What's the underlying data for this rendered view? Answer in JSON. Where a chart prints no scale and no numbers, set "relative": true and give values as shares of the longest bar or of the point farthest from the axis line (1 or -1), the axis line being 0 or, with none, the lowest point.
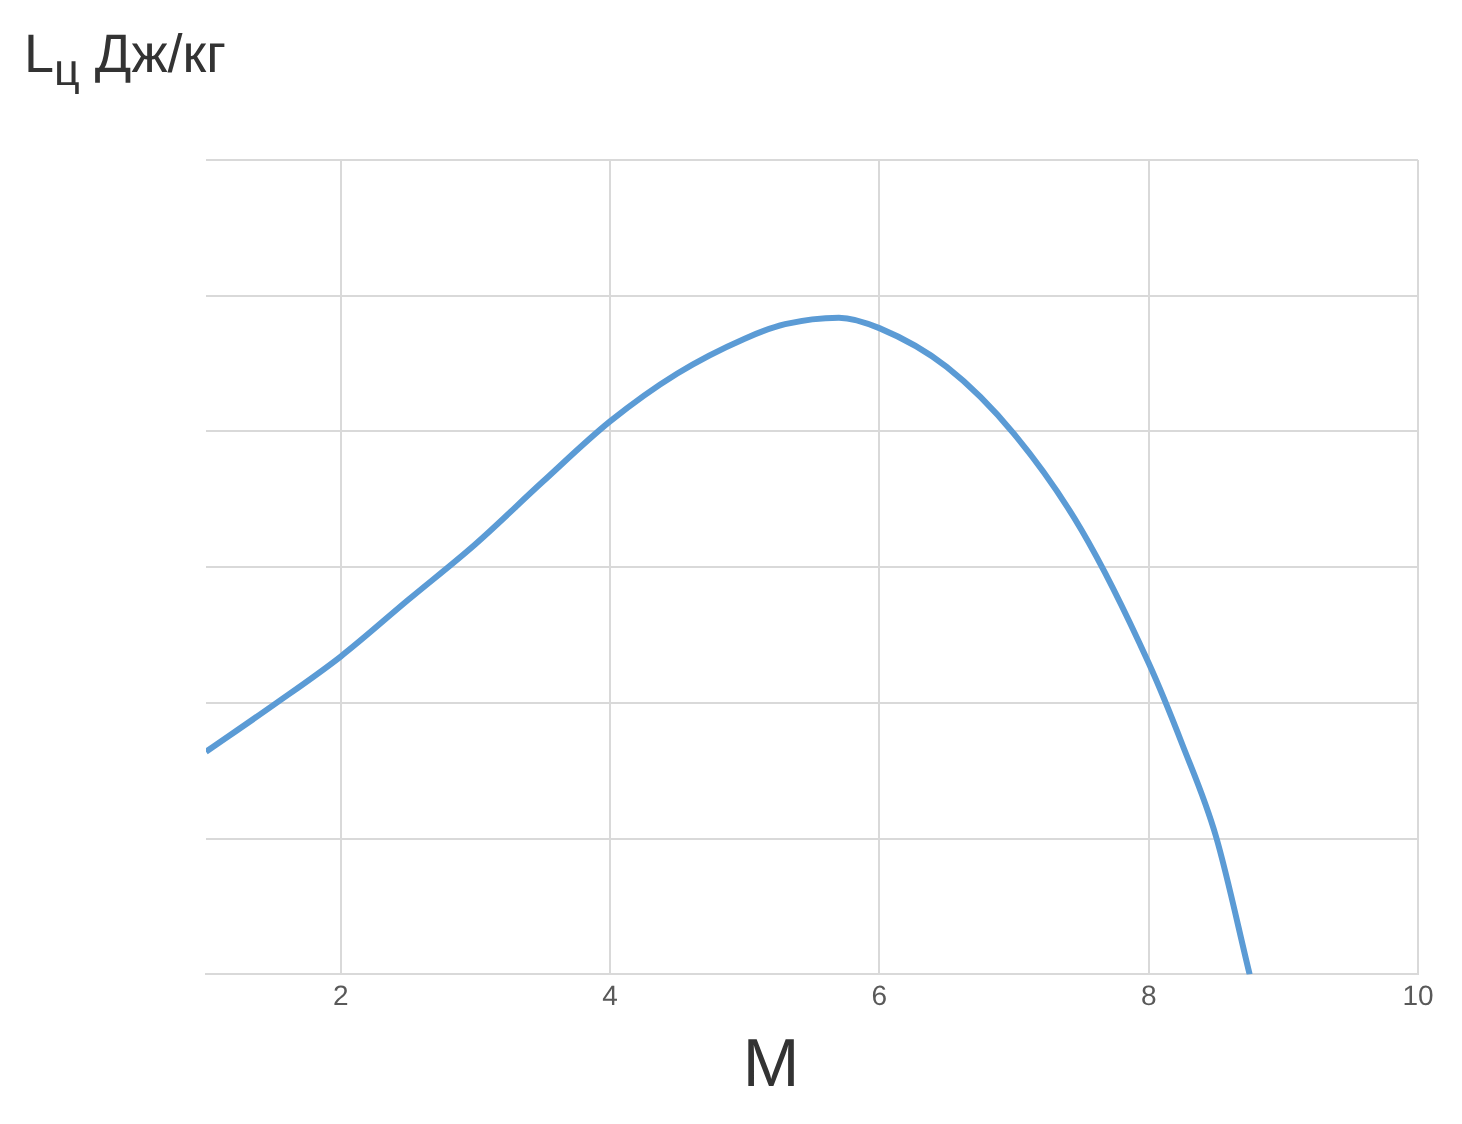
{
  "chart_data": {
    "type": "line",
    "ylabel": "L$_{ц}$ Дж/кг",
    "xlabel": "M",
    "relative": true,
    "xlim": [
      1,
      10
    ],
    "xticks": [
      2,
      4,
      6,
      8,
      10
    ],
    "tick_labels": "x",
    "grid": true,
    "legend": false,
    "marker": "none",
    "line_style": "solid",
    "series": [
      {
        "color": "#5b9bd5",
        "x": [
          1,
          1.5,
          2,
          2.5,
          3,
          3.5,
          4,
          4.5,
          5,
          5.3,
          5.7,
          6,
          6.5,
          7,
          7.5,
          8,
          8.25,
          8.5,
          8.75
        ],
        "values": [
          0.339,
          0.41,
          0.484,
          0.57,
          0.655,
          0.75,
          0.842,
          0.915,
          0.968,
          0.99,
          1,
          0.984,
          0.925,
          0.823,
          0.677,
          0.474,
          0.35,
          0.21,
          0
        ]
      }
    ]
  }
}
